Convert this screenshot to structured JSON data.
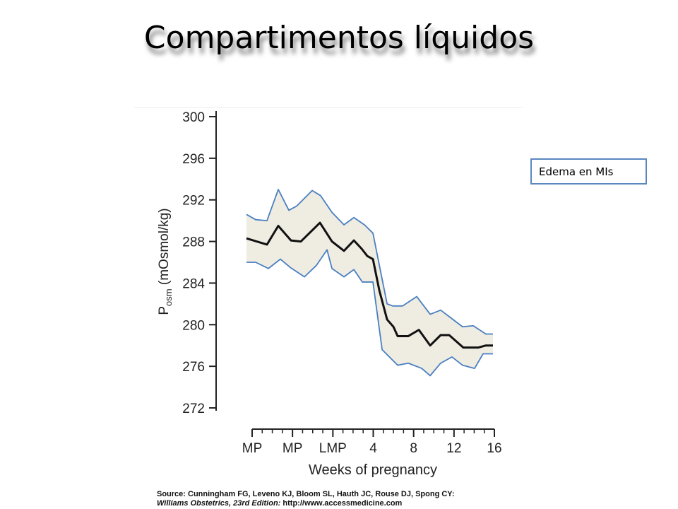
{
  "slide": {
    "title": "Compartimentos líquidos",
    "note_box": "Edema en MIs",
    "source": {
      "line1": "Source: Cunningham FG, Leveno KJ, Bloom SL, Hauth JC, Rouse DJ, Spong CY:",
      "line2_italic": "Williams Obstetrics, 23rd Edition:",
      "line2_url": "http://www.accessmedicine.com"
    }
  },
  "chart_data": {
    "type": "line",
    "xlabel": "Weeks of pregnancy",
    "ylabel": {
      "base": "P",
      "sub": "osm",
      "rest": " (mOsmol/kg)"
    },
    "xlim": [
      -8,
      16
    ],
    "xticks": [
      {
        "value": -8,
        "label": "MP"
      },
      {
        "value": -4,
        "label": "MP"
      },
      {
        "value": 0,
        "label": "LMP"
      },
      4,
      8,
      12,
      16
    ],
    "xminor_ticks": [
      -7,
      -6,
      -5,
      -3,
      -2,
      -1,
      1,
      2,
      3,
      5,
      6,
      7,
      9,
      10,
      11,
      13,
      14,
      15
    ],
    "ylim": [
      272,
      300
    ],
    "yticks": [
      272,
      276,
      280,
      284,
      288,
      292,
      296,
      300
    ],
    "grid": false,
    "band_fill": "#efece2",
    "series": [
      {
        "color": "#111111",
        "x": [
          -8.56,
          -6.53,
          -5.41,
          -4.15,
          -3.17,
          -1.28,
          -0.09,
          1.1,
          2.08,
          2.85,
          3.41,
          3.97,
          4.6,
          5.37,
          6.0,
          6.42,
          7.47,
          8.52,
          9.64,
          10.68,
          11.52,
          12.92,
          14.39,
          15.16,
          15.86
        ],
        "values": [
          288.3,
          287.7,
          289.5,
          288.1,
          288.0,
          289.8,
          288.0,
          287.1,
          288.1,
          287.3,
          286.6,
          286.3,
          283.3,
          280.5,
          279.8,
          278.9,
          278.9,
          279.5,
          278.0,
          279.0,
          279.0,
          277.8,
          277.8,
          278.0,
          278.0
        ]
      },
      {
        "color": "#4a7fc1",
        "x": [
          -8.56,
          -7.65,
          -6.53,
          -5.41,
          -4.36,
          -3.59,
          -2.05,
          -1.21,
          -0.09,
          1.1,
          2.08,
          3.13,
          3.97,
          5.37,
          5.93,
          6.91,
          8.31,
          9.64,
          10.68,
          12.85,
          13.9,
          15.16,
          15.86
        ],
        "values": [
          290.6,
          290.1,
          290.0,
          293.0,
          291.0,
          291.4,
          292.9,
          292.4,
          290.8,
          289.6,
          290.3,
          289.6,
          288.8,
          282.0,
          281.8,
          281.8,
          282.7,
          281.0,
          281.4,
          279.8,
          279.9,
          279.1,
          279.1
        ]
      },
      {
        "color": "#4a7fc1",
        "x": [
          -8.56,
          -7.65,
          -6.39,
          -5.2,
          -4.22,
          -2.82,
          -1.63,
          -0.58,
          -0.09,
          1.1,
          2.08,
          2.92,
          3.97,
          4.88,
          6.42,
          7.47,
          8.8,
          9.64,
          10.68,
          11.8,
          12.85,
          14.04,
          14.88,
          15.86
        ],
        "values": [
          286.0,
          286.0,
          285.4,
          286.3,
          285.5,
          284.6,
          285.7,
          287.2,
          285.4,
          284.6,
          285.3,
          284.1,
          284.1,
          277.6,
          276.1,
          276.3,
          275.8,
          275.1,
          276.3,
          276.9,
          276.1,
          275.8,
          277.2,
          277.2
        ]
      }
    ]
  }
}
